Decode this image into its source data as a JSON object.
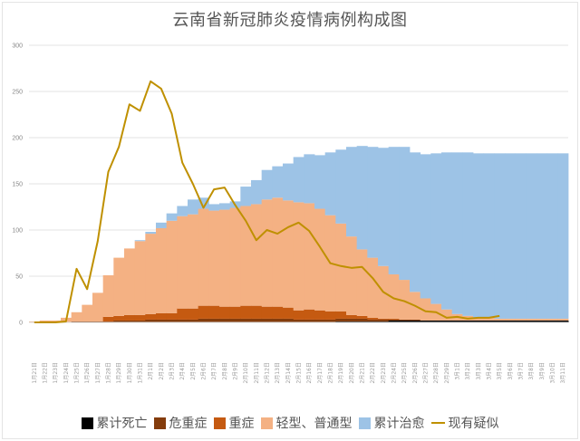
{
  "chart_data": {
    "type": "area",
    "title": "云南省新冠肺炎疫情病例构成图",
    "xlabel": "",
    "ylabel": "",
    "ylim": [
      0,
      300
    ],
    "yticks": [
      0,
      50,
      100,
      150,
      200,
      250,
      300
    ],
    "grid": true,
    "legend_position": "bottom",
    "categories": [
      "1月21日",
      "1月22日",
      "1月23日",
      "1月24日",
      "1月25日",
      "1月26日",
      "1月27日",
      "1月28日",
      "1月29日",
      "1月30日",
      "1月31日",
      "2月1日",
      "2月2日",
      "2月3日",
      "2月4日",
      "2月5日",
      "2月6日",
      "2月7日",
      "2月8日",
      "2月9日",
      "2月10日",
      "2月11日",
      "2月12日",
      "2月13日",
      "2月14日",
      "2月15日",
      "2月16日",
      "2月17日",
      "2月18日",
      "2月19日",
      "2月20日",
      "2月21日",
      "2月22日",
      "2月23日",
      "2月24日",
      "2月25日",
      "2月26日",
      "2月27日",
      "2月28日",
      "2月29日",
      "3月1日",
      "3月2日",
      "3月3日",
      "3月4日",
      "3月5日",
      "3月6日",
      "3月7日",
      "3月8日",
      "3月9日",
      "3月10日",
      "3月11日"
    ],
    "series": [
      {
        "name": "累计死亡",
        "kind": "stacked-bar",
        "color": "#000000",
        "values": [
          0,
          0,
          0,
          0,
          0,
          0,
          0,
          0,
          0,
          0,
          0,
          0,
          0,
          0,
          0,
          0,
          0,
          0,
          0,
          0,
          0,
          0,
          0,
          0,
          0,
          0,
          0,
          0,
          0,
          1,
          1,
          1,
          1,
          1,
          2,
          2,
          2,
          2,
          2,
          2,
          2,
          2,
          2,
          2,
          2,
          2,
          2,
          2,
          2,
          2,
          2
        ]
      },
      {
        "name": "危重症",
        "kind": "stacked-bar",
        "color": "#843c0c",
        "values": [
          0,
          0,
          0,
          0,
          1,
          1,
          1,
          1,
          2,
          2,
          2,
          3,
          3,
          3,
          3,
          3,
          4,
          4,
          4,
          4,
          4,
          4,
          4,
          4,
          4,
          3,
          3,
          3,
          3,
          3,
          3,
          3,
          2,
          2,
          1,
          1,
          1,
          0,
          0,
          0,
          0,
          0,
          0,
          0,
          0,
          0,
          0,
          0,
          0,
          0,
          0
        ]
      },
      {
        "name": "重症",
        "kind": "stacked-bar",
        "color": "#c55a11",
        "values": [
          0,
          0,
          0,
          0,
          0,
          0,
          0,
          5,
          5,
          6,
          6,
          6,
          7,
          7,
          12,
          12,
          14,
          14,
          13,
          13,
          14,
          14,
          13,
          13,
          12,
          10,
          11,
          10,
          9,
          8,
          4,
          3,
          2,
          1,
          1,
          0,
          0,
          0,
          0,
          0,
          0,
          0,
          0,
          0,
          0,
          0,
          0,
          0,
          0,
          0,
          0
        ]
      },
      {
        "name": "轻型、普通型",
        "kind": "stacked-bar",
        "color": "#f4b183",
        "values": [
          1,
          2,
          2,
          5,
          10,
          18,
          31,
          45,
          63,
          72,
          80,
          87,
          92,
          100,
          100,
          102,
          105,
          103,
          105,
          107,
          108,
          110,
          116,
          118,
          116,
          117,
          115,
          110,
          104,
          95,
          85,
          72,
          65,
          57,
          48,
          43,
          30,
          24,
          18,
          12,
          7,
          5,
          3,
          3,
          2,
          2,
          2,
          2,
          2,
          2,
          2
        ]
      },
      {
        "name": "累计治愈",
        "kind": "stacked-bar",
        "color": "#9dc3e6",
        "values": [
          0,
          0,
          0,
          0,
          0,
          0,
          0,
          0,
          0,
          0,
          1,
          2,
          6,
          8,
          11,
          16,
          12,
          7,
          7,
          7,
          21,
          26,
          32,
          34,
          40,
          49,
          53,
          58,
          68,
          80,
          97,
          112,
          120,
          128,
          138,
          144,
          151,
          156,
          163,
          170,
          175,
          177,
          178,
          178,
          179,
          179,
          179,
          179,
          179,
          179,
          179
        ]
      },
      {
        "name": "现有疑似",
        "kind": "line",
        "color": "#bf9000",
        "values": [
          0,
          0,
          0,
          1,
          58,
          36,
          88,
          163,
          190,
          236,
          229,
          261,
          253,
          226,
          173,
          150,
          124,
          144,
          146,
          127,
          110,
          89,
          100,
          96,
          103,
          108,
          99,
          82,
          64,
          61,
          59,
          60,
          48,
          33,
          26,
          23,
          18,
          12,
          11,
          5,
          6,
          4,
          5,
          5,
          7,
          null,
          null,
          null,
          null,
          null,
          null
        ]
      }
    ]
  },
  "legend": {
    "items": [
      {
        "label": "累计死亡",
        "color": "#000000",
        "type": "box"
      },
      {
        "label": "危重症",
        "color": "#843c0c",
        "type": "box"
      },
      {
        "label": "重症",
        "color": "#c55a11",
        "type": "box"
      },
      {
        "label": "轻型、普通型",
        "color": "#f4b183",
        "type": "box"
      },
      {
        "label": "累计治愈",
        "color": "#9dc3e6",
        "type": "box"
      },
      {
        "label": "现有疑似",
        "color": "#bf9000",
        "type": "line"
      }
    ]
  }
}
